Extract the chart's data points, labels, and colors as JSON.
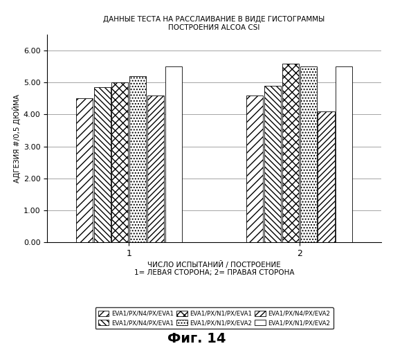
{
  "title_line1": "ДАННЫЕ ТЕСТА НА РАССЛАИВАНИЕ В ВИДЕ ГИСТОГРАММЫ",
  "title_line2": "ПОСТРОЕНИЯ ALCOA CSI",
  "xlabel": "ЧИСЛО ИСПЫТАНИЙ / ПОСТРОЕНИЕ",
  "xlabel_sub": "1= ЛЕВАЯ СТОРОНА; 2= ПРАВАЯ СТОРОНА",
  "ylabel": "АДГЕЗИЯ #/0,5 ДЮЙМА",
  "fig_caption": "Фиг. 14",
  "groups": [
    1,
    2
  ],
  "values": [
    [
      4.5,
      4.85,
      5.0,
      5.2,
      4.6,
      5.5
    ],
    [
      4.6,
      4.9,
      5.6,
      5.5,
      4.1,
      5.5
    ]
  ],
  "legend_labels": [
    "EVA1/PX/N4/PX/EVA1",
    "EVA1/PX/N4/PX/EVA1",
    "EVA1/PX/N1/PX/EVA1",
    "EVA1/PX/N1/PX/EVA2",
    "EVA1/PX/N4/PX/EVA2",
    "EVA1/PX/N1/PX/EVA2"
  ],
  "ylim": [
    0.0,
    6.5
  ],
  "yticks": [
    0.0,
    1.0,
    2.0,
    3.0,
    4.0,
    5.0,
    6.0
  ],
  "bar_width": 0.105,
  "group_centers": [
    1.0,
    2.0
  ],
  "facecolor": "white",
  "edgecolor": "black"
}
